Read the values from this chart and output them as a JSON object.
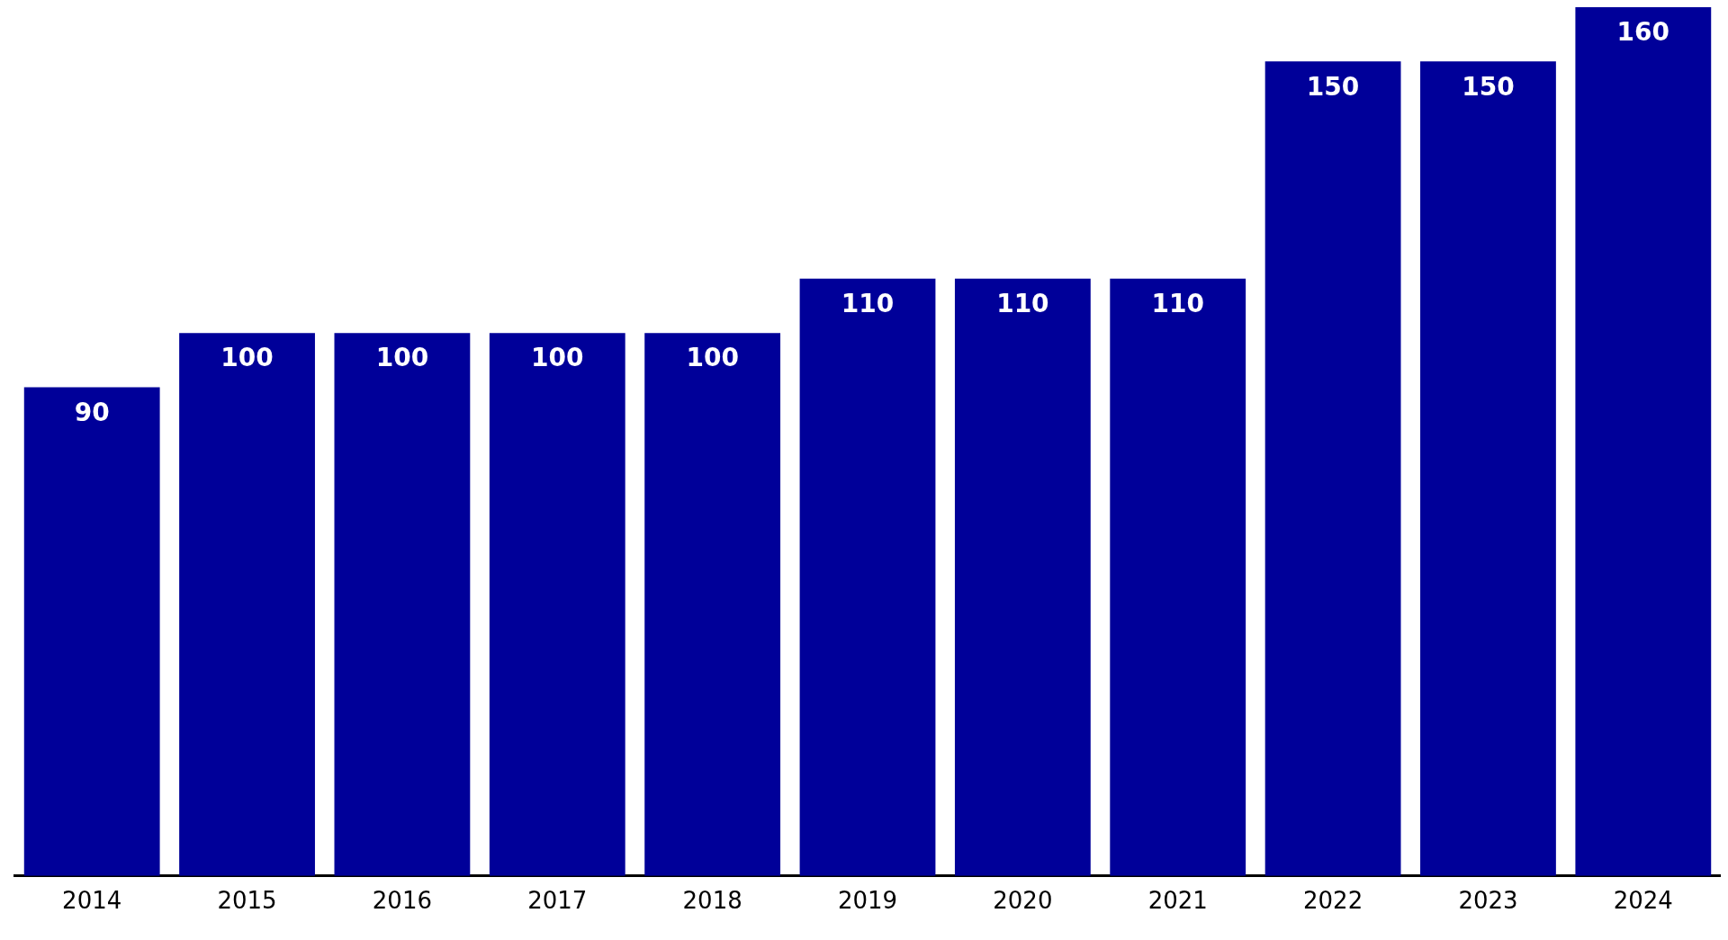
{
  "chart_data": {
    "type": "bar",
    "categories": [
      "2014",
      "2015",
      "2016",
      "2017",
      "2018",
      "2019",
      "2020",
      "2021",
      "2022",
      "2023",
      "2024"
    ],
    "values": [
      90,
      100,
      100,
      100,
      100,
      110,
      110,
      110,
      150,
      150,
      160
    ],
    "color": "#000099",
    "data_labels": true,
    "grid": false,
    "legend": false
  }
}
